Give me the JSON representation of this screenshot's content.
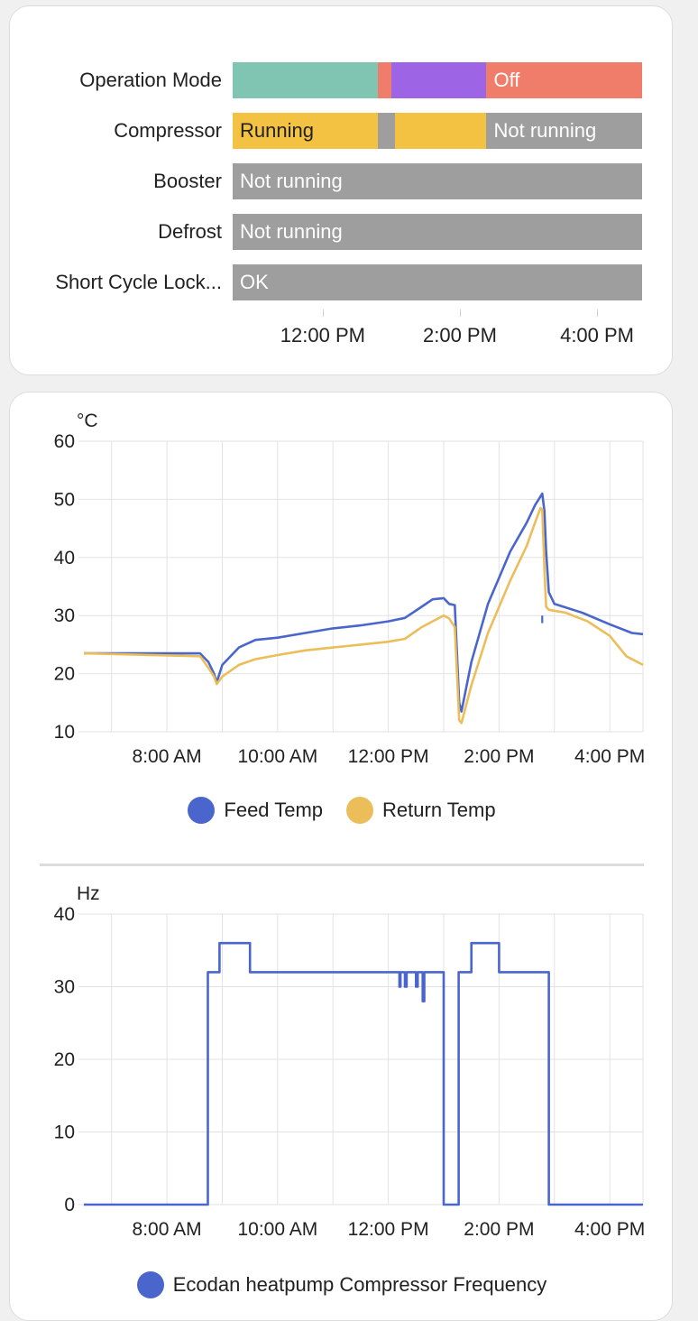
{
  "timeline": {
    "rows": [
      {
        "label": "Operation Mode",
        "segments": [
          {
            "start": 0.0,
            "end": 0.355,
            "color": "#80c4b2",
            "text": ""
          },
          {
            "start": 0.355,
            "end": 0.387,
            "color": "#f07d6a",
            "text": ""
          },
          {
            "start": 0.387,
            "end": 0.62,
            "color": "#9d64e6",
            "text": ""
          },
          {
            "start": 0.62,
            "end": 1.0,
            "color": "#f07d6a",
            "text": "Off",
            "text_color": "#ffffff"
          }
        ]
      },
      {
        "label": "Compressor",
        "segments": [
          {
            "start": 0.0,
            "end": 0.355,
            "color": "#f4c242",
            "text": "Running",
            "text_color": "#212121"
          },
          {
            "start": 0.355,
            "end": 0.397,
            "color": "#9e9e9e",
            "text": ""
          },
          {
            "start": 0.397,
            "end": 0.62,
            "color": "#f4c242",
            "text": ""
          },
          {
            "start": 0.62,
            "end": 1.0,
            "color": "#9e9e9e",
            "text": "Not running",
            "text_color": "#ffffff"
          }
        ]
      },
      {
        "label": "Booster",
        "segments": [
          {
            "start": 0.0,
            "end": 1.0,
            "color": "#9e9e9e",
            "text": "Not running",
            "text_color": "#ffffff"
          }
        ]
      },
      {
        "label": "Defrost",
        "segments": [
          {
            "start": 0.0,
            "end": 1.0,
            "color": "#9e9e9e",
            "text": "Not running",
            "text_color": "#ffffff"
          }
        ]
      },
      {
        "label": "Short Cycle Lock...",
        "segments": [
          {
            "start": 0.0,
            "end": 1.0,
            "color": "#9e9e9e",
            "text": "OK",
            "text_color": "#ffffff"
          }
        ]
      }
    ],
    "ticks": [
      {
        "label": "12:00 PM",
        "pos": 0.22
      },
      {
        "label": "2:00 PM",
        "pos": 0.555
      },
      {
        "label": "4:00 PM",
        "pos": 0.89
      }
    ]
  },
  "chart_data": [
    {
      "type": "line",
      "ylabel": "°C",
      "ylim": [
        10,
        60
      ],
      "yticks": [
        10,
        20,
        30,
        40,
        50,
        60
      ],
      "xlim": [
        6.5,
        16.6
      ],
      "xticks": [
        {
          "value": 8,
          "label": "8:00 AM"
        },
        {
          "value": 10,
          "label": "10:00 AM"
        },
        {
          "value": 12,
          "label": "12:00 PM"
        },
        {
          "value": 14,
          "label": "2:00 PM"
        },
        {
          "value": 16,
          "label": "4:00 PM"
        }
      ],
      "grid": true,
      "legend_position": "bottom",
      "series": [
        {
          "name": "Feed Temp",
          "color": "#4a66cc",
          "points": [
            [
              6.5,
              23.5
            ],
            [
              8.6,
              23.5
            ],
            [
              8.75,
              22
            ],
            [
              8.85,
              20
            ],
            [
              8.9,
              18.5
            ],
            [
              9.0,
              21.5
            ],
            [
              9.3,
              24.5
            ],
            [
              9.6,
              25.8
            ],
            [
              10.0,
              26.2
            ],
            [
              10.5,
              27
            ],
            [
              11.0,
              27.8
            ],
            [
              11.5,
              28.3
            ],
            [
              12.0,
              29.0
            ],
            [
              12.3,
              29.6
            ],
            [
              12.6,
              31.5
            ],
            [
              12.8,
              32.8
            ],
            [
              13.0,
              33.0
            ],
            [
              13.1,
              32.0
            ],
            [
              13.2,
              31.8
            ],
            [
              13.28,
              15
            ],
            [
              13.32,
              13.5
            ],
            [
              13.5,
              22
            ],
            [
              13.8,
              32
            ],
            [
              14.2,
              41
            ],
            [
              14.5,
              46
            ],
            [
              14.65,
              49
            ],
            [
              14.75,
              50.5
            ],
            [
              14.78,
              51
            ],
            [
              14.82,
              48
            ],
            [
              14.85,
              41
            ],
            [
              14.9,
              34
            ],
            [
              15.0,
              32
            ],
            [
              15.5,
              30.5
            ],
            [
              16.0,
              28.5
            ],
            [
              16.4,
              27
            ],
            [
              16.6,
              26.8
            ]
          ],
          "spikes": [
            [
              14.78,
              28.7
            ]
          ]
        },
        {
          "name": "Return Temp",
          "color": "#ecbe5a",
          "points": [
            [
              6.5,
              23.5
            ],
            [
              8.6,
              23.0
            ],
            [
              8.75,
              21
            ],
            [
              8.85,
              19.5
            ],
            [
              8.9,
              18.2
            ],
            [
              9.0,
              19.5
            ],
            [
              9.3,
              21.5
            ],
            [
              9.6,
              22.5
            ],
            [
              10.0,
              23.2
            ],
            [
              10.5,
              24
            ],
            [
              11.0,
              24.5
            ],
            [
              11.5,
              25
            ],
            [
              12.0,
              25.5
            ],
            [
              12.3,
              26
            ],
            [
              12.6,
              28
            ],
            [
              12.8,
              29
            ],
            [
              13.0,
              30
            ],
            [
              13.1,
              29.5
            ],
            [
              13.2,
              28
            ],
            [
              13.28,
              12
            ],
            [
              13.32,
              11.5
            ],
            [
              13.5,
              18
            ],
            [
              13.8,
              27
            ],
            [
              14.2,
              36
            ],
            [
              14.5,
              42
            ],
            [
              14.65,
              46
            ],
            [
              14.75,
              48.5
            ],
            [
              14.78,
              48.3
            ],
            [
              14.82,
              38
            ],
            [
              14.85,
              31.5
            ],
            [
              14.9,
              31
            ],
            [
              15.2,
              30.5
            ],
            [
              15.6,
              29
            ],
            [
              16.0,
              26.5
            ],
            [
              16.3,
              23
            ],
            [
              16.6,
              21.5
            ]
          ]
        }
      ]
    },
    {
      "type": "line",
      "ylabel": "Hz",
      "ylim": [
        0,
        40
      ],
      "yticks": [
        0,
        10,
        20,
        30,
        40
      ],
      "xlim": [
        6.5,
        16.6
      ],
      "xticks": [
        {
          "value": 8,
          "label": "8:00 AM"
        },
        {
          "value": 10,
          "label": "10:00 AM"
        },
        {
          "value": 12,
          "label": "12:00 PM"
        },
        {
          "value": 14,
          "label": "2:00 PM"
        },
        {
          "value": 16,
          "label": "4:00 PM"
        }
      ],
      "grid": true,
      "legend_position": "bottom",
      "series": [
        {
          "name": "Ecodan heatpump Compressor Frequency",
          "color": "#4a66cc",
          "points": [
            [
              6.5,
              0
            ],
            [
              8.74,
              0
            ],
            [
              8.74,
              32
            ],
            [
              8.95,
              32
            ],
            [
              8.95,
              36
            ],
            [
              9.5,
              36
            ],
            [
              9.5,
              32
            ],
            [
              12.2,
              32
            ],
            [
              12.2,
              30
            ],
            [
              12.22,
              30
            ],
            [
              12.22,
              32
            ],
            [
              12.3,
              32
            ],
            [
              12.3,
              30
            ],
            [
              12.33,
              30
            ],
            [
              12.33,
              32
            ],
            [
              12.5,
              32
            ],
            [
              12.5,
              30
            ],
            [
              12.53,
              30
            ],
            [
              12.53,
              32
            ],
            [
              12.62,
              32
            ],
            [
              12.62,
              28
            ],
            [
              12.65,
              28
            ],
            [
              12.65,
              32
            ],
            [
              12.75,
              32
            ],
            [
              12.75,
              32
            ],
            [
              12.8,
              32
            ],
            [
              13.0,
              32
            ],
            [
              13.0,
              0
            ],
            [
              13.27,
              0
            ],
            [
              13.27,
              32
            ],
            [
              13.5,
              32
            ],
            [
              13.5,
              36
            ],
            [
              14.0,
              36
            ],
            [
              14.0,
              32
            ],
            [
              14.9,
              32
            ],
            [
              14.9,
              0
            ],
            [
              16.6,
              0
            ]
          ]
        }
      ]
    }
  ]
}
